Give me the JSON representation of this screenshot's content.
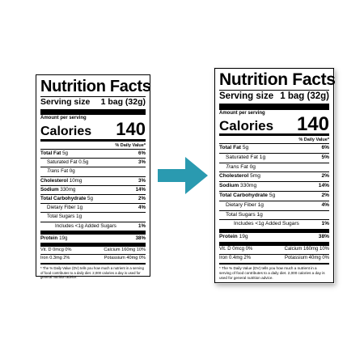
{
  "labels": [
    {
      "title": "Nutrition Facts",
      "serving_size_label": "Serving size",
      "serving_size_value": "1 bag (32g)",
      "amount_per_serving": "Amount per serving",
      "calories_label": "Calories",
      "calories_value": "140",
      "daily_value_header": "% Daily Value*",
      "nutrients": [
        {
          "name": "Total Fat",
          "amount": "5g",
          "dv": "6%"
        },
        {
          "name": "Saturated Fat",
          "amount": "0.5g",
          "dv": "3%"
        },
        {
          "name": "Trans",
          "amount": "Fat 0g",
          "dv": ""
        },
        {
          "name": "Cholesterol",
          "amount": "10mg",
          "dv": "3%"
        },
        {
          "name": "Sodium",
          "amount": "330mg",
          "dv": "14%"
        },
        {
          "name": "Total Carbohydrate",
          "amount": "5g",
          "dv": "2%"
        },
        {
          "name": "Dietary Fiber",
          "amount": "1g",
          "dv": "4%"
        },
        {
          "name": "Total Sugars",
          "amount": "1g",
          "dv": ""
        },
        {
          "name": "Includes <1g Added Sugars",
          "amount": "",
          "dv": "1%"
        },
        {
          "name": "Protein",
          "amount": "19g",
          "dv": "38%"
        }
      ],
      "vitamins": [
        {
          "left": "Vit. D 0mcg 0%",
          "right": "Calcium 160mg 10%"
        },
        {
          "left": "Iron 0.3mg 2%",
          "right": "Potassium 40mg 0%"
        }
      ],
      "footnote": "* The % Daily Value (DV) tells you how much a nutrient in a serving of food contributes to a daily diet. 2,000 calories a day is used for general nutrition advice."
    },
    {
      "title": "Nutrition Facts",
      "serving_size_label": "Serving size",
      "serving_size_value": "1 bag (32g)",
      "amount_per_serving": "Amount per serving",
      "calories_label": "Calories",
      "calories_value": "140",
      "daily_value_header": "% Daily Value*",
      "nutrients": [
        {
          "name": "Total Fat",
          "amount": "5g",
          "dv": "6%"
        },
        {
          "name": "Saturated Fat",
          "amount": "1g",
          "dv": "5%"
        },
        {
          "name": "Trans",
          "amount": "Fat 0g",
          "dv": ""
        },
        {
          "name": "Cholesterol",
          "amount": "5mg",
          "dv": "2%"
        },
        {
          "name": "Sodium",
          "amount": "330mg",
          "dv": "14%"
        },
        {
          "name": "Total Carbohydrate",
          "amount": "5g",
          "dv": "2%"
        },
        {
          "name": "Dietary Fiber",
          "amount": "1g",
          "dv": "4%"
        },
        {
          "name": "Total Sugars",
          "amount": "1g",
          "dv": ""
        },
        {
          "name": "Includes <1g Added Sugars",
          "amount": "",
          "dv": "1%"
        },
        {
          "name": "Protein",
          "amount": "19g",
          "dv": "38%"
        }
      ],
      "vitamins": [
        {
          "left": "Vit. D 0mcg 0%",
          "right": "Calcium 160mg 10%"
        },
        {
          "left": "Iron 0.4mg 2%",
          "right": "Potassium 40mg 0%"
        }
      ],
      "footnote": "* The % Daily Value (DV) tells you how much a nutrient in a serving of food contributes to a daily diet. 2,000 calories a day is used for general nutrition advice."
    }
  ],
  "arrow": {
    "icon": "arrow-right-icon",
    "color": "#2a9ab0"
  }
}
